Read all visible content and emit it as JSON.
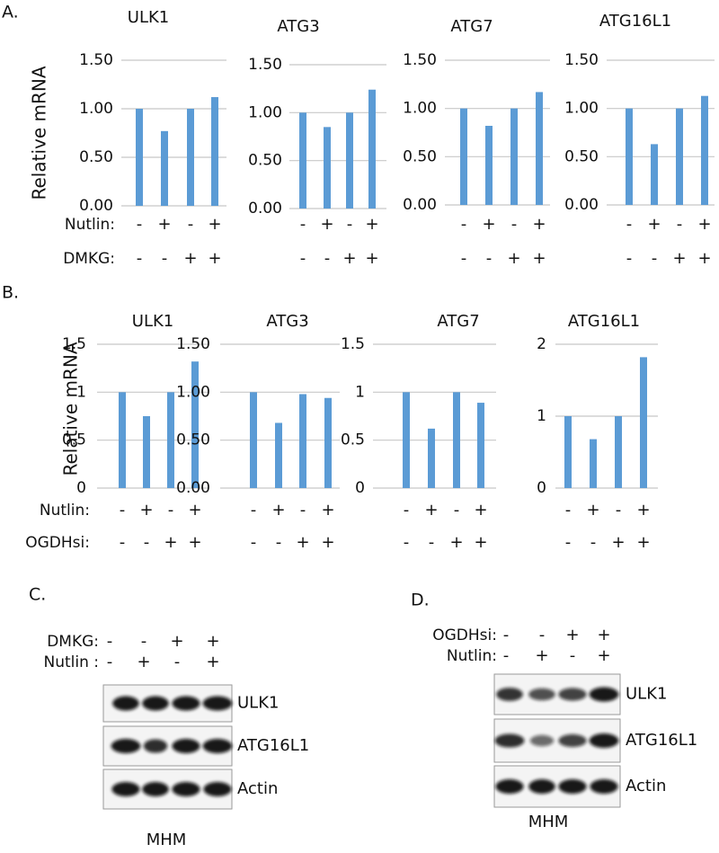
{
  "chart_data": [
    {
      "type": "bar",
      "title": "ULK1",
      "y_label": "Relative mRNA",
      "values": [
        1.0,
        0.77,
        1.0,
        1.12
      ],
      "color": "#5b9bd5",
      "ylim": [
        0,
        1.5
      ],
      "yticks": [
        {
          "value": 0,
          "label": "0.00"
        },
        {
          "value": 0.5,
          "label": "0.50"
        },
        {
          "value": 1,
          "label": "1.00"
        },
        {
          "value": 1.5,
          "label": "1.50"
        }
      ],
      "grid": true
    },
    {
      "type": "bar",
      "title": "ATG3",
      "values": [
        1.0,
        0.85,
        1.0,
        1.24
      ],
      "color": "#5b9bd5",
      "ylim": [
        0,
        1.5
      ],
      "yticks": [
        {
          "value": 0,
          "label": "0.00"
        },
        {
          "value": 0.5,
          "label": "0.50"
        },
        {
          "value": 1,
          "label": "1.00"
        },
        {
          "value": 1.5,
          "label": "1.50"
        }
      ],
      "grid": true
    },
    {
      "type": "bar",
      "title": "ATG7",
      "values": [
        1.0,
        0.82,
        1.0,
        1.17
      ],
      "color": "#5b9bd5",
      "ylim": [
        0,
        1.5
      ],
      "yticks": [
        {
          "value": 0,
          "label": "0.00"
        },
        {
          "value": 0.5,
          "label": "0.50"
        },
        {
          "value": 1,
          "label": "1.00"
        },
        {
          "value": 1.5,
          "label": "1.50"
        }
      ],
      "grid": true
    },
    {
      "type": "bar",
      "title": "ATG16L1",
      "values": [
        1.0,
        0.63,
        1.0,
        1.13
      ],
      "color": "#5b9bd5",
      "ylim": [
        0,
        1.5
      ],
      "yticks": [
        {
          "value": 0,
          "label": "0.00"
        },
        {
          "value": 0.5,
          "label": "0.50"
        },
        {
          "value": 1,
          "label": "1.00"
        },
        {
          "value": 1.5,
          "label": "1.50"
        }
      ],
      "grid": true
    },
    {
      "type": "bar",
      "title": "ULK1",
      "y_label": "Relative mRNA",
      "values": [
        1,
        0.75,
        1,
        1.32
      ],
      "color": "#5b9bd5",
      "ylim": [
        0,
        1.5
      ],
      "yticks": [
        0,
        0.5,
        1,
        1.5
      ],
      "grid": true
    },
    {
      "type": "bar",
      "title": "ATG3",
      "values": [
        1.0,
        0.68,
        0.98,
        0.94
      ],
      "color": "#5b9bd5",
      "ylim": [
        0,
        1.5
      ],
      "yticks": [
        {
          "value": 0,
          "label": "0.00"
        },
        {
          "value": 0.5,
          "label": "0.50"
        },
        {
          "value": 1,
          "label": "1.00"
        },
        {
          "value": 1.5,
          "label": "1.50"
        }
      ],
      "grid": true
    },
    {
      "type": "bar",
      "title": "ATG7",
      "values": [
        1,
        0.62,
        1,
        0.89
      ],
      "color": "#5b9bd5",
      "ylim": [
        0,
        1.5
      ],
      "yticks": [
        0,
        0.5,
        1,
        1.5
      ],
      "grid": true
    },
    {
      "type": "bar",
      "title": "ATG16L1",
      "values": [
        1,
        0.68,
        1,
        1.82
      ],
      "color": "#5b9bd5",
      "ylim": [
        0,
        2
      ],
      "yticks": [
        0,
        1,
        2
      ],
      "grid": true
    }
  ],
  "panels": [
    {
      "label": "A.",
      "conditions": [
        {
          "label": "Nutlin:",
          "signs": [
            "-",
            "+",
            "-",
            "+"
          ]
        },
        {
          "label": "DMKG:",
          "signs": [
            "-",
            "-",
            "+",
            "+"
          ]
        }
      ]
    },
    {
      "label": "B.",
      "conditions": [
        {
          "label": "Nutlin:",
          "signs": [
            "-",
            "+",
            "-",
            "+"
          ]
        },
        {
          "label": "OGDHsi:",
          "signs": [
            "-",
            "-",
            "+",
            "+"
          ]
        }
      ]
    },
    {
      "label": "C.",
      "conditions": [
        {
          "label": "DMKG:",
          "signs": [
            "-",
            "-",
            "+",
            "+"
          ]
        },
        {
          "label": "Nutlin :",
          "signs": [
            "-",
            "+",
            "-",
            "+"
          ]
        }
      ],
      "blots": [
        "ULK1",
        "ATG16L1",
        "Actin"
      ],
      "cell_line": "MHM"
    },
    {
      "label": "D.",
      "conditions": [
        {
          "label": "OGDHsi:",
          "signs": [
            "-",
            "-",
            "+",
            "+"
          ]
        },
        {
          "label": "Nutlin:",
          "signs": [
            "-",
            "+",
            "-",
            "+"
          ]
        }
      ],
      "blots": [
        "ULK1",
        "ATG16L1",
        "Actin"
      ],
      "cell_line": "MHM"
    }
  ]
}
